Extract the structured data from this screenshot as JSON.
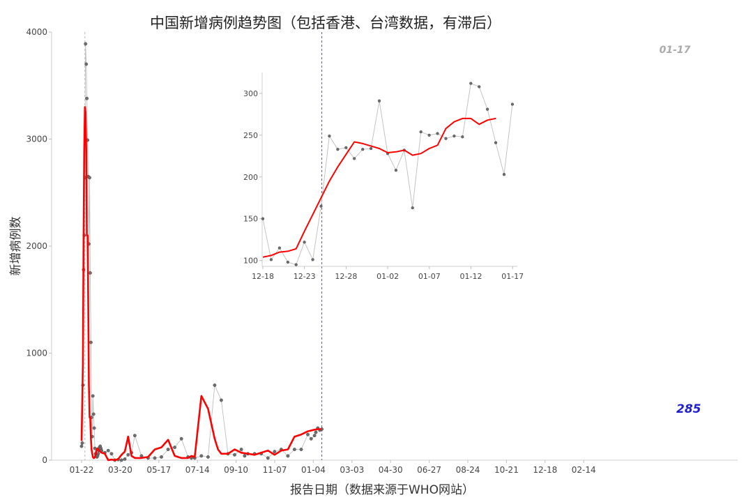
{
  "chart_data": [
    {
      "type": "line",
      "title": "中国新增病例趋势图（包括香港、台湾数据，有滞后）",
      "xlabel": "报告日期（数据来源于WHO网站）",
      "ylabel": "新增病例数",
      "x_ticks": [
        "01-22",
        "03-20",
        "05-17",
        "07-14",
        "09-10",
        "11-07",
        "01-04",
        "03-03",
        "04-30",
        "06-27",
        "08-24",
        "10-21",
        "12-18",
        "02-14"
      ],
      "y_ticks": [
        "0",
        "1000",
        "2000",
        "3000",
        "4000"
      ],
      "ylim": [
        0,
        4000
      ],
      "grid": false,
      "vertical_markers": [
        {
          "label": "",
          "day": 5,
          "style": "dashed-grey"
        },
        {
          "label": "01-17",
          "day": 361,
          "style": "dashed-blue"
        }
      ],
      "last_value_label": "285",
      "series": [
        {
          "name": "",
          "style": "points-grey-line",
          "x_day": [
            0,
            1,
            2,
            3,
            4,
            5,
            6,
            7,
            8,
            9,
            10,
            11,
            12,
            13,
            14,
            15,
            16,
            17,
            18,
            19,
            20,
            21,
            22,
            23,
            24,
            25,
            26,
            27,
            28,
            29,
            30,
            35,
            40,
            45,
            50,
            55,
            60,
            65,
            70,
            75,
            80,
            90,
            100,
            110,
            120,
            130,
            140,
            150,
            160,
            165,
            170,
            180,
            190,
            200,
            210,
            220,
            230,
            240,
            245,
            250,
            260,
            270,
            280,
            290,
            300,
            310,
            320,
            330,
            340,
            345,
            350,
            352,
            355,
            358,
            361
          ],
          "values": [
            130,
            160,
            700,
            1780,
            2100,
            2640,
            3890,
            3700,
            3380,
            2990,
            2650,
            2020,
            2640,
            1750,
            1100,
            400,
            220,
            600,
            430,
            300,
            110,
            60,
            40,
            30,
            40,
            60,
            90,
            120,
            130,
            110,
            90,
            70,
            90,
            60,
            0,
            5,
            0,
            10,
            50,
            70,
            230,
            40,
            20,
            20,
            30,
            100,
            120,
            200,
            30,
            20,
            20,
            40,
            30,
            700,
            560,
            60,
            50,
            100,
            40,
            60,
            60,
            60,
            20,
            80,
            100,
            40,
            100,
            100,
            240,
            200,
            230,
            260,
            300,
            280,
            290
          ]
        },
        {
          "name": "",
          "style": "trend-red",
          "x_day": [
            0,
            2,
            3,
            4,
            5,
            6,
            7,
            8,
            9,
            10,
            11,
            12,
            13,
            14,
            15,
            16,
            17,
            18,
            19,
            20,
            21,
            22,
            23,
            24,
            25,
            26,
            28,
            30,
            35,
            40,
            45,
            50,
            55,
            60,
            65,
            70,
            75,
            80,
            90,
            100,
            110,
            120,
            130,
            140,
            150,
            160,
            165,
            170,
            180,
            190,
            200,
            205,
            210,
            220,
            230,
            240,
            250,
            260,
            270,
            280,
            290,
            300,
            310,
            320,
            330,
            340,
            350,
            355,
            360
          ],
          "values": [
            180,
            900,
            2100,
            2900,
            3300,
            3250,
            2900,
            2100,
            2100,
            1500,
            700,
            400,
            400,
            200,
            100,
            60,
            30,
            20,
            20,
            30,
            50,
            80,
            100,
            110,
            100,
            90,
            80,
            70,
            60,
            0,
            5,
            0,
            10,
            50,
            80,
            220,
            40,
            20,
            20,
            30,
            100,
            120,
            190,
            40,
            20,
            20,
            40,
            30,
            600,
            480,
            200,
            100,
            60,
            60,
            100,
            70,
            60,
            50,
            70,
            90,
            50,
            90,
            100,
            220,
            240,
            270,
            285,
            290,
            290
          ]
        }
      ]
    },
    {
      "type": "line",
      "title": "",
      "x_ticks": [
        "12-18",
        "12-23",
        "12-28",
        "01-02",
        "01-07",
        "01-12",
        "01-17"
      ],
      "y_ticks": [
        "100",
        "150",
        "200",
        "250",
        "300"
      ],
      "ylim": [
        93,
        325
      ],
      "grid": false,
      "series": [
        {
          "name": "",
          "style": "points-grey-line",
          "x_day": [
            0,
            1,
            2,
            3,
            4,
            5,
            6,
            7,
            8,
            9,
            10,
            11,
            12,
            13,
            14,
            15,
            16,
            17,
            18,
            19,
            20,
            21,
            22,
            23,
            24,
            25,
            26,
            27,
            28,
            29,
            30
          ],
          "values": [
            150,
            101,
            115,
            98,
            95,
            122,
            101,
            165,
            249,
            233,
            235,
            222,
            233,
            234,
            291,
            228,
            208,
            232,
            163,
            254,
            250,
            252,
            246,
            249,
            248,
            312,
            308,
            281,
            241,
            203,
            287
          ]
        },
        {
          "name": "",
          "style": "trend-red",
          "x_day": [
            0,
            1,
            2,
            3,
            4,
            5,
            6,
            7,
            8,
            9,
            10,
            11,
            12,
            13,
            14,
            15,
            16,
            17,
            18,
            19,
            20,
            21,
            22,
            23,
            24,
            25,
            26,
            27,
            28
          ],
          "values": [
            104,
            106,
            110,
            111,
            114,
            135,
            155,
            175,
            195,
            212,
            227,
            242,
            240,
            237,
            234,
            229,
            230,
            232,
            226,
            228,
            234,
            238,
            258,
            266,
            270,
            270,
            263,
            268,
            270
          ]
        }
      ]
    }
  ]
}
